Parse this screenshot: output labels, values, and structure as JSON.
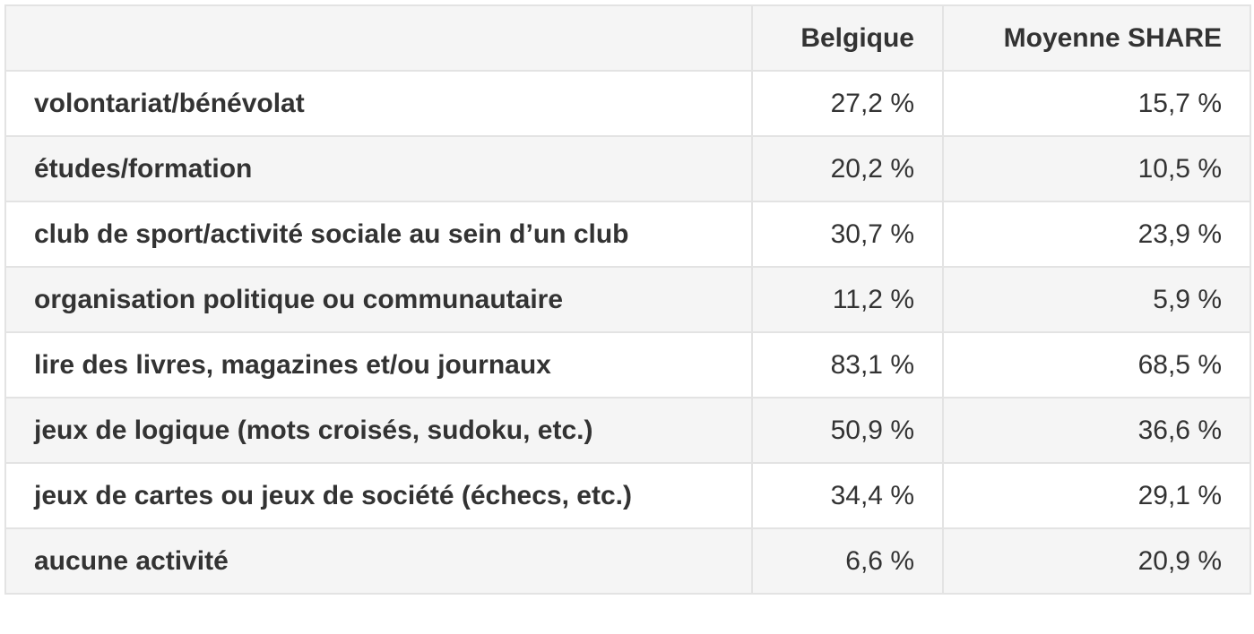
{
  "table": {
    "headers": [
      "",
      "Belgique",
      "Moyenne SHARE"
    ],
    "rows": [
      {
        "label": "volontariat/bénévolat",
        "belgique": "27,2 %",
        "share": "15,7 %"
      },
      {
        "label": "études/formation",
        "belgique": "20,2 %",
        "share": "10,5 %"
      },
      {
        "label": "club de sport/activité sociale au sein d’un club",
        "belgique": "30,7 %",
        "share": "23,9 %"
      },
      {
        "label": "organisation politique ou communautaire",
        "belgique": "11,2 %",
        "share": "5,9 %"
      },
      {
        "label": "lire des livres, magazines et/ou journaux",
        "belgique": "83,1 %",
        "share": "68,5 %"
      },
      {
        "label": "jeux de logique (mots croisés, sudoku, etc.)",
        "belgique": "50,9 %",
        "share": "36,6 %"
      },
      {
        "label": "jeux de cartes ou jeux de société (échecs, etc.)",
        "belgique": "34,4 %",
        "share": "29,1 %"
      },
      {
        "label": "aucune activité",
        "belgique": "6,6 %",
        "share": "20,9 %"
      }
    ]
  },
  "colors": {
    "text": "#333333",
    "border": "#e3e3e3",
    "stripe": "#f5f5f5",
    "background": "#ffffff"
  }
}
